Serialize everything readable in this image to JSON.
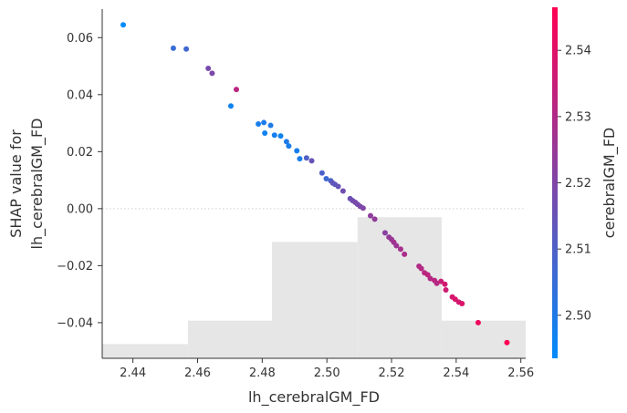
{
  "chart_data": {
    "type": "scatter",
    "xlabel": "lh_cerebralGM_FD",
    "ylabel_lines": [
      "SHAP value for",
      "lh_cerebralGM_FD"
    ],
    "xlim": [
      2.4305,
      2.5615
    ],
    "ylim": [
      -0.0525,
      0.07
    ],
    "x_ticks": [
      "2.44",
      "2.46",
      "2.48",
      "2.50",
      "2.52",
      "2.54",
      "2.56"
    ],
    "x_tick_values": [
      2.44,
      2.46,
      2.48,
      2.5,
      2.52,
      2.54,
      2.56
    ],
    "y_ticks": [
      "0.06",
      "0.04",
      "0.02",
      "0.00",
      "−0.02",
      "−0.04"
    ],
    "y_tick_values": [
      0.06,
      0.04,
      0.02,
      0.0,
      -0.02,
      -0.04
    ],
    "zero_line": true,
    "histogram": {
      "bin_edges": [
        2.4305,
        2.457,
        2.483,
        2.5095,
        2.5355,
        2.5615
      ],
      "tops": [
        -0.0475,
        -0.0393,
        -0.0117,
        -0.003,
        -0.0393
      ],
      "color": "#e6e6e6"
    },
    "colorbar": {
      "label": "cerebralGM_FD",
      "range": [
        2.4935,
        2.5465
      ],
      "ticks": [
        "2.50",
        "2.51",
        "2.52",
        "2.53",
        "2.54"
      ],
      "tick_values": [
        2.5,
        2.51,
        2.52,
        2.53,
        2.54
      ],
      "colors": [
        "#008bfb",
        "#ff0052"
      ]
    },
    "points": [
      {
        "x": 2.437,
        "y": 0.0645,
        "c": 2.4935
      },
      {
        "x": 2.4525,
        "y": 0.0563,
        "c": 2.505
      },
      {
        "x": 2.4565,
        "y": 0.056,
        "c": 2.507
      },
      {
        "x": 2.4633,
        "y": 0.0492,
        "c": 2.518
      },
      {
        "x": 2.4645,
        "y": 0.0475,
        "c": 2.519
      },
      {
        "x": 2.4703,
        "y": 0.036,
        "c": 2.497
      },
      {
        "x": 2.472,
        "y": 0.0418,
        "c": 2.532
      },
      {
        "x": 2.4788,
        "y": 0.0297,
        "c": 2.498
      },
      {
        "x": 2.4805,
        "y": 0.0302,
        "c": 2.499
      },
      {
        "x": 2.4808,
        "y": 0.0265,
        "c": 2.497
      },
      {
        "x": 2.4826,
        "y": 0.0292,
        "c": 2.5
      },
      {
        "x": 2.4838,
        "y": 0.0258,
        "c": 2.498
      },
      {
        "x": 2.4857,
        "y": 0.0255,
        "c": 2.497
      },
      {
        "x": 2.4875,
        "y": 0.0235,
        "c": 2.5
      },
      {
        "x": 2.4882,
        "y": 0.022,
        "c": 2.499
      },
      {
        "x": 2.4907,
        "y": 0.0203,
        "c": 2.498
      },
      {
        "x": 2.4916,
        "y": 0.0175,
        "c": 2.499
      },
      {
        "x": 2.4937,
        "y": 0.0178,
        "c": 2.51
      },
      {
        "x": 2.4953,
        "y": 0.0168,
        "c": 2.515
      },
      {
        "x": 2.4985,
        "y": 0.0125,
        "c": 2.509
      },
      {
        "x": 2.4998,
        "y": 0.0105,
        "c": 2.506
      },
      {
        "x": 2.5012,
        "y": 0.0098,
        "c": 2.509
      },
      {
        "x": 2.5018,
        "y": 0.009,
        "c": 2.515
      },
      {
        "x": 2.5025,
        "y": 0.0085,
        "c": 2.513
      },
      {
        "x": 2.5035,
        "y": 0.0078,
        "c": 2.515
      },
      {
        "x": 2.505,
        "y": 0.0062,
        "c": 2.517
      },
      {
        "x": 2.5072,
        "y": 0.0035,
        "c": 2.516
      },
      {
        "x": 2.508,
        "y": 0.0028,
        "c": 2.517
      },
      {
        "x": 2.5088,
        "y": 0.0022,
        "c": 2.519
      },
      {
        "x": 2.5095,
        "y": 0.0015,
        "c": 2.518
      },
      {
        "x": 2.5103,
        "y": 0.0008,
        "c": 2.519
      },
      {
        "x": 2.5112,
        "y": 0.0002,
        "c": 2.52
      },
      {
        "x": 2.5135,
        "y": -0.0025,
        "c": 2.523
      },
      {
        "x": 2.5148,
        "y": -0.0037,
        "c": 2.524
      },
      {
        "x": 2.518,
        "y": -0.0085,
        "c": 2.522
      },
      {
        "x": 2.5192,
        "y": -0.01,
        "c": 2.524
      },
      {
        "x": 2.52,
        "y": -0.0108,
        "c": 2.526
      },
      {
        "x": 2.5207,
        "y": -0.0118,
        "c": 2.527
      },
      {
        "x": 2.5215,
        "y": -0.013,
        "c": 2.526
      },
      {
        "x": 2.5228,
        "y": -0.0142,
        "c": 2.528
      },
      {
        "x": 2.524,
        "y": -0.016,
        "c": 2.529
      },
      {
        "x": 2.5285,
        "y": -0.0202,
        "c": 2.53
      },
      {
        "x": 2.5292,
        "y": -0.021,
        "c": 2.531
      },
      {
        "x": 2.5302,
        "y": -0.0225,
        "c": 2.532
      },
      {
        "x": 2.5312,
        "y": -0.0232,
        "c": 2.533
      },
      {
        "x": 2.532,
        "y": -0.0245,
        "c": 2.531
      },
      {
        "x": 2.5333,
        "y": -0.0252,
        "c": 2.532
      },
      {
        "x": 2.534,
        "y": -0.0262,
        "c": 2.531
      },
      {
        "x": 2.5353,
        "y": -0.0255,
        "c": 2.535
      },
      {
        "x": 2.5365,
        "y": -0.0265,
        "c": 2.537
      },
      {
        "x": 2.5368,
        "y": -0.0285,
        "c": 2.536
      },
      {
        "x": 2.5388,
        "y": -0.031,
        "c": 2.538
      },
      {
        "x": 2.5397,
        "y": -0.0318,
        "c": 2.539
      },
      {
        "x": 2.5408,
        "y": -0.0328,
        "c": 2.537
      },
      {
        "x": 2.5418,
        "y": -0.0333,
        "c": 2.539
      },
      {
        "x": 2.5468,
        "y": -0.04,
        "c": 2.543
      },
      {
        "x": 2.5557,
        "y": -0.047,
        "c": 2.546
      }
    ]
  }
}
